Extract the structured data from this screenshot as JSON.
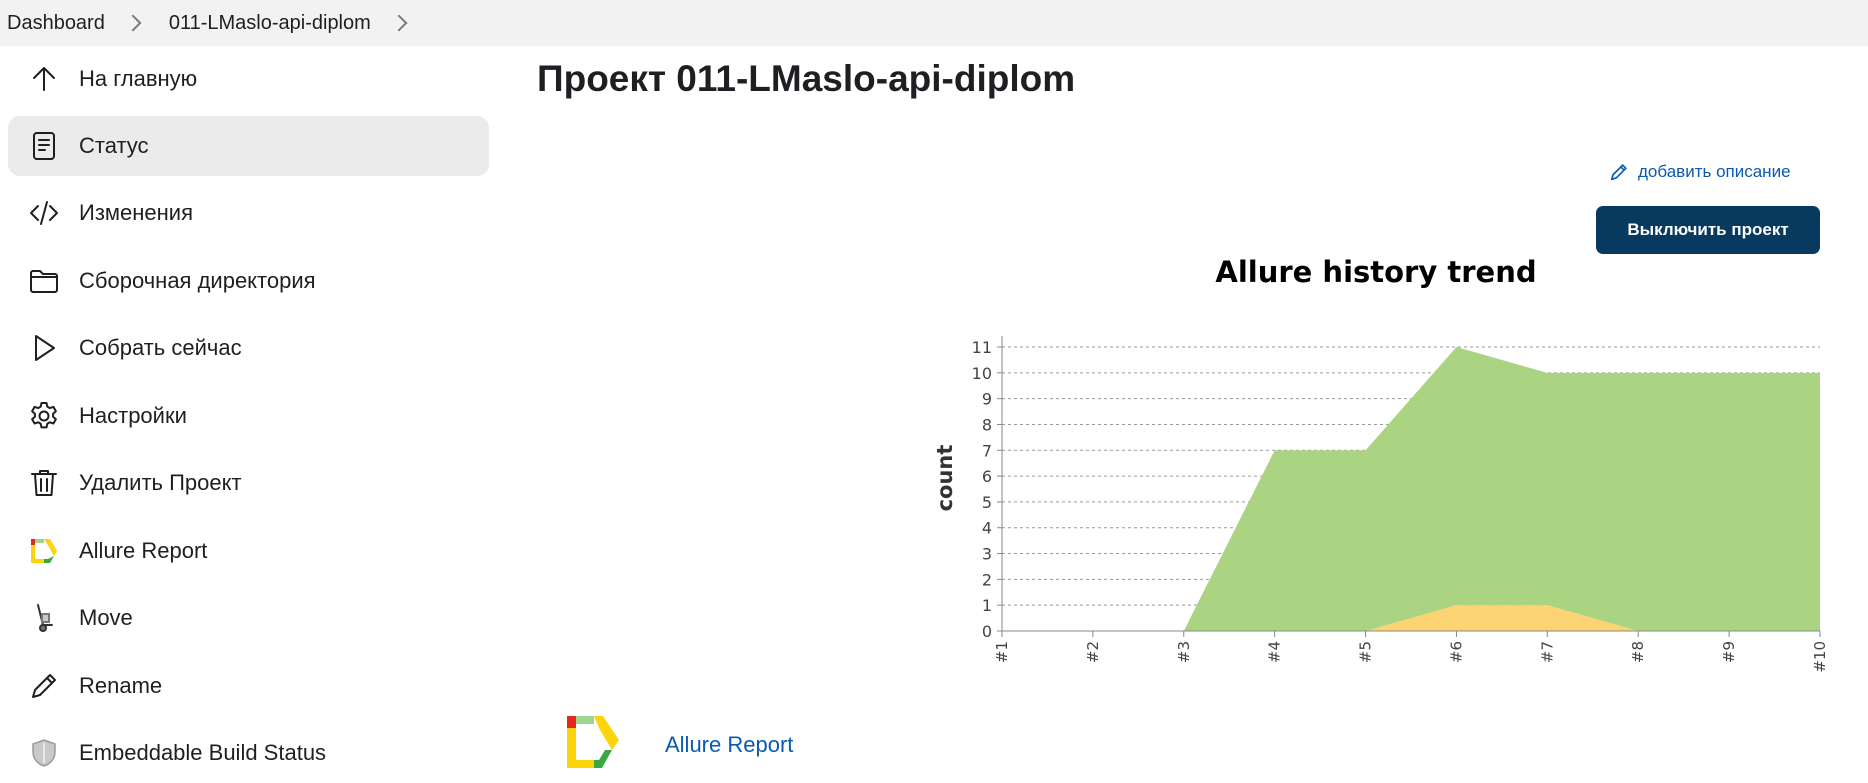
{
  "breadcrumb": {
    "items": [
      "Dashboard",
      "011-LMaslo-api-diplom"
    ]
  },
  "sidebar": {
    "items": [
      {
        "label": "На главную",
        "icon": "arrow-up-icon",
        "active": false
      },
      {
        "label": "Статус",
        "icon": "document-icon",
        "active": true
      },
      {
        "label": "Изменения",
        "icon": "code-icon",
        "active": false
      },
      {
        "label": "Сборочная директория",
        "icon": "folder-icon",
        "active": false
      },
      {
        "label": "Собрать сейчас",
        "icon": "play-icon",
        "active": false
      },
      {
        "label": "Настройки",
        "icon": "gear-icon",
        "active": false
      },
      {
        "label": "Удалить Проект",
        "icon": "trash-icon",
        "active": false
      },
      {
        "label": "Allure Report",
        "icon": "allure-logo-icon",
        "active": false
      },
      {
        "label": "Move",
        "icon": "hand-truck-icon",
        "active": false
      },
      {
        "label": "Rename",
        "icon": "pencil-icon",
        "active": false
      },
      {
        "label": "Embeddable Build Status",
        "icon": "shield-icon",
        "active": false
      }
    ]
  },
  "main": {
    "title": "Проект 011-LMaslo-api-diplom",
    "add_description": "добавить описание",
    "disable_button": "Выключить проект",
    "report_link": "Allure Report"
  },
  "colors": {
    "passed": "#aad482",
    "broken": "#fdd474",
    "button_bg": "#073a5e",
    "link": "#0b59b2"
  },
  "chart_data": {
    "type": "area",
    "title": "Allure history trend",
    "ylabel": "count",
    "xlabel": "",
    "categories": [
      "#1",
      "#2",
      "#3",
      "#4",
      "#5",
      "#6",
      "#7",
      "#8",
      "#9",
      "#10"
    ],
    "ylim": [
      0,
      11
    ],
    "yticks": [
      0,
      1,
      2,
      3,
      4,
      5,
      6,
      7,
      8,
      9,
      10,
      11
    ],
    "grid": true,
    "stacked": true,
    "series": [
      {
        "values": [
          0,
          0,
          0,
          0,
          0,
          1,
          1,
          0,
          0,
          0
        ],
        "color": "#fdd474"
      },
      {
        "values": [
          0,
          0,
          0,
          7,
          7,
          10,
          9,
          10,
          10,
          10
        ],
        "color": "#aad482"
      }
    ]
  }
}
